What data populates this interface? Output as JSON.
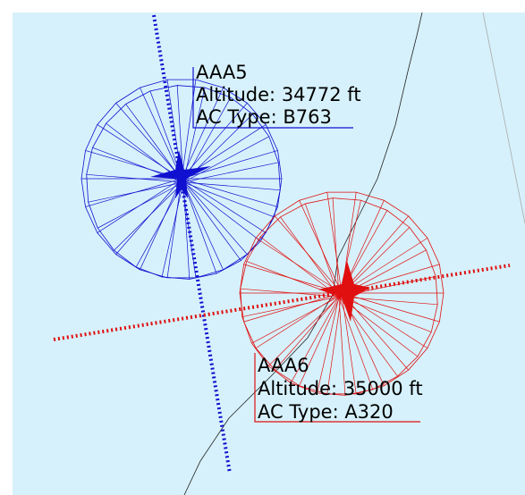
{
  "aircraft": [
    {
      "callsign": "AAA5",
      "altitude": "Altitude: 34772 ft",
      "ac_type": "AC Type: B763"
    },
    {
      "callsign": "AAA6",
      "altitude": "Altitude: 35000 ft",
      "ac_type": "AC Type: A320"
    }
  ]
}
